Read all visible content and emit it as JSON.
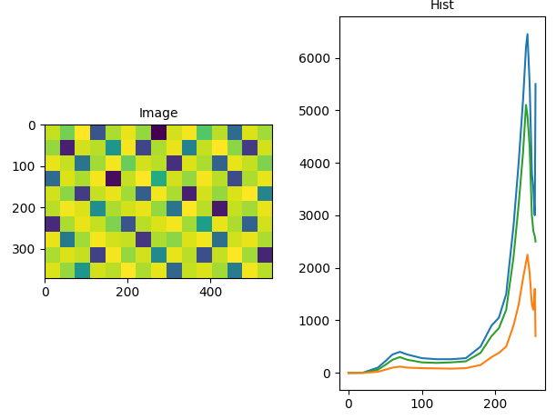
{
  "chart_data": [
    {
      "type": "heatmap",
      "title": "Image",
      "xlim": [
        -0.5,
        549.5
      ],
      "ylim": [
        369.5,
        -0.5
      ],
      "xticks": [
        0,
        200,
        400
      ],
      "yticks": [
        0,
        100,
        200,
        300
      ],
      "cells": [
        [
          0.92,
          0.85,
          0.97,
          0.55,
          0.9,
          0.95,
          0.88,
          0.4,
          0.93,
          0.96,
          0.82,
          0.91,
          0.6,
          0.94,
          0.89
        ],
        [
          0.88,
          0.45,
          0.93,
          0.91,
          0.7,
          0.96,
          0.52,
          0.9,
          0.95,
          0.65,
          0.92,
          0.97,
          0.87,
          0.5,
          0.93
        ],
        [
          0.95,
          0.92,
          0.62,
          0.89,
          0.96,
          0.84,
          0.93,
          0.91,
          0.48,
          0.94,
          0.9,
          0.58,
          0.95,
          0.92,
          0.86
        ],
        [
          0.6,
          0.94,
          0.9,
          0.96,
          0.42,
          0.92,
          0.97,
          0.75,
          0.93,
          0.88,
          0.96,
          0.91,
          0.53,
          0.9,
          0.95
        ],
        [
          0.93,
          0.87,
          0.5,
          0.92,
          0.95,
          0.89,
          0.57,
          0.96,
          0.9,
          0.45,
          0.93,
          0.88,
          0.94,
          0.97,
          0.66
        ],
        [
          0.91,
          0.96,
          0.94,
          0.68,
          0.9,
          0.93,
          0.95,
          0.88,
          0.62,
          0.97,
          0.91,
          0.44,
          0.92,
          0.89,
          0.95
        ],
        [
          0.47,
          0.9,
          0.95,
          0.92,
          0.86,
          0.55,
          0.91,
          0.94,
          0.96,
          0.89,
          0.72,
          0.95,
          0.9,
          0.58,
          0.93
        ],
        [
          0.95,
          0.63,
          0.89,
          0.96,
          0.93,
          0.92,
          0.49,
          0.9,
          0.87,
          0.94,
          0.96,
          0.61,
          0.93,
          0.95,
          0.9
        ],
        [
          0.9,
          0.94,
          0.92,
          0.51,
          0.96,
          0.88,
          0.93,
          0.67,
          0.95,
          0.91,
          0.54,
          0.92,
          0.97,
          0.89,
          0.46
        ],
        [
          0.94,
          0.88,
          0.7,
          0.93,
          0.91,
          0.97,
          0.9,
          0.95,
          0.59,
          0.92,
          0.94,
          0.89,
          0.64,
          0.96,
          0.91
        ]
      ]
    },
    {
      "type": "line",
      "title": "Hist",
      "x": [
        0,
        20,
        40,
        50,
        60,
        70,
        80,
        100,
        120,
        140,
        160,
        180,
        195,
        205,
        215,
        225,
        232,
        238,
        242,
        244,
        247,
        250,
        252,
        254,
        255
      ],
      "xlim": [
        -12.75,
        267.75
      ],
      "xticks": [
        0,
        100,
        200
      ],
      "ylim": [
        -320,
        6780
      ],
      "yticks": [
        0,
        1000,
        2000,
        3000,
        4000,
        5000,
        6000
      ],
      "series": [
        {
          "color": "#1f77b4",
          "values": [
            0,
            5,
            100,
            220,
            350,
            400,
            350,
            280,
            260,
            260,
            280,
            500,
            900,
            1050,
            1500,
            2800,
            4000,
            5200,
            6200,
            6450,
            5500,
            3800,
            3500,
            3000,
            5500
          ]
        },
        {
          "color": "#2ca02c",
          "values": [
            0,
            0,
            60,
            150,
            250,
            300,
            250,
            200,
            190,
            200,
            220,
            380,
            700,
            850,
            1200,
            2200,
            3200,
            4200,
            5100,
            4900,
            4300,
            3000,
            2700,
            2600,
            2500
          ]
        },
        {
          "color": "#ff7f0e",
          "values": [
            0,
            0,
            20,
            60,
            100,
            120,
            100,
            90,
            85,
            80,
            90,
            150,
            300,
            380,
            500,
            900,
            1300,
            1800,
            2100,
            2250,
            1900,
            1300,
            1200,
            1600,
            700
          ]
        }
      ]
    }
  ]
}
